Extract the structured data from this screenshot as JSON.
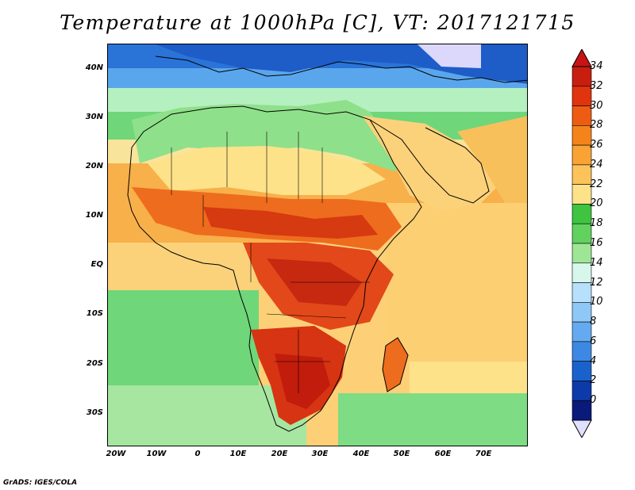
{
  "title": "Temperature at 1000hPa [C], VT: 2017121715",
  "credit": "GrADS: IGES/COLA",
  "lat_labels": [
    "40N",
    "30N",
    "20N",
    "10N",
    "EQ",
    "10S",
    "20S",
    "30S"
  ],
  "lon_labels": [
    "20W",
    "10W",
    "0",
    "10E",
    "20E",
    "30E",
    "40E",
    "50E",
    "60E",
    "70E"
  ],
  "colorbar": {
    "ticks": [
      "34",
      "32",
      "30",
      "28",
      "26",
      "24",
      "22",
      "20",
      "18",
      "16",
      "14",
      "12",
      "10",
      "8",
      "6",
      "4",
      "2",
      "0"
    ],
    "colors": [
      "#c81e10",
      "#e0340f",
      "#ee5c14",
      "#f5831c",
      "#f8a334",
      "#fbc35a",
      "#fde28a",
      "#3ec43e",
      "#62d25f",
      "#9ee696",
      "#d8f7ec",
      "#b6e0fb",
      "#8ec8f6",
      "#64aaf0",
      "#3d88e2",
      "#1a62cb",
      "#0c3aa8",
      "#0a1a7a"
    ],
    "top_arrow": "#c81414",
    "bottom_arrow": "#e0e0ff"
  }
}
